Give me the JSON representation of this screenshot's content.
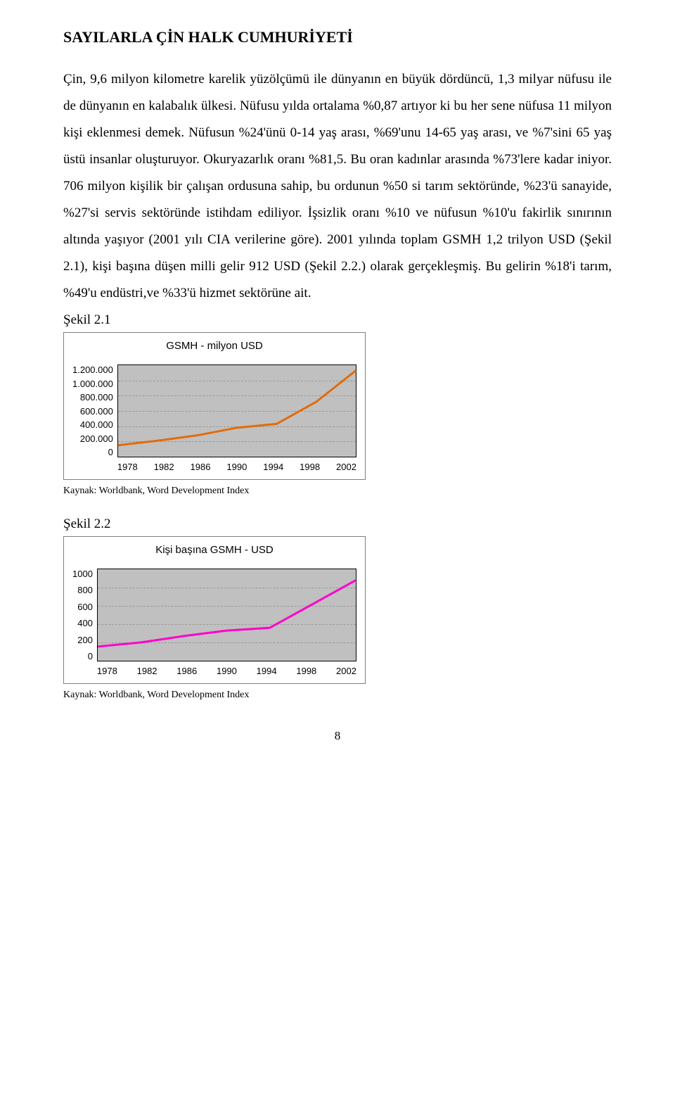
{
  "title": "SAYILARLA ÇİN HALK CUMHURİYETİ",
  "paragraph": "Çin, 9,6 milyon kilometre karelik yüzölçümü ile dünyanın en büyük dördüncü, 1,3 milyar nüfusu ile de dünyanın en kalabalık ülkesi. Nüfusu yılda ortalama %0,87 artıyor ki bu her sene nüfusa 11 milyon kişi eklenmesi demek. Nüfusun %24'ünü 0-14 yaş arası, %69'unu 14-65 yaş arası, ve %7'sini 65 yaş üstü insanlar oluşturuyor. Okuryazarlık oranı %81,5. Bu oran kadınlar arasında %73'lere kadar iniyor. 706 milyon kişilik bir çalışan ordusuna sahip,  bu ordunun %50 si tarım sektöründe, %23'ü sanayide, %27'si servis sektöründe istihdam ediliyor. İşsizlik oranı %10 ve nüfusun %10'u fakirlik sınırının altında yaşıyor (2001 yılı CIA verilerine göre). 2001 yılında toplam GSMH 1,2 trilyon USD (Şekil 2.1), kişi başına düşen milli gelir 912 USD (Şekil 2.2.) olarak gerçekleşmiş. Bu gelirin %18'i tarım, %49'u endüstri,ve %33'ü hizmet sektörüne ait.",
  "sekil21_label": "Şekil 2.1",
  "sekil22_label": "Şekil 2.2",
  "chart1": {
    "type": "line",
    "title": "GSMH - milyon USD",
    "y_ticks": [
      "1.200.000",
      "1.000.000",
      "800.000",
      "600.000",
      "400.000",
      "200.000",
      "0"
    ],
    "x_ticks": [
      "1978",
      "1982",
      "1986",
      "1990",
      "1994",
      "1998",
      "2002"
    ],
    "x_values": [
      1978,
      1982,
      1986,
      1990,
      1994,
      1998,
      2002
    ],
    "y_values": [
      150000,
      210000,
      280000,
      380000,
      430000,
      720000,
      1130000
    ],
    "y_min": 0,
    "y_max": 1200000,
    "line_color": "#e26b0a",
    "line_width": 3,
    "plot_background": "#c0c0c0",
    "grid_color": "#999999",
    "title_fontsize": 15,
    "tick_fontsize": 13
  },
  "chart2": {
    "type": "line",
    "title": "Kişi başına GSMH - USD",
    "y_ticks": [
      "1000",
      "800",
      "600",
      "400",
      "200",
      "0"
    ],
    "x_ticks": [
      "1978",
      "1982",
      "1986",
      "1990",
      "1994",
      "1998",
      "2002"
    ],
    "x_values": [
      1978,
      1982,
      1986,
      1990,
      1994,
      1998,
      2002
    ],
    "y_values": [
      155,
      200,
      270,
      330,
      360,
      620,
      880
    ],
    "y_min": 0,
    "y_max": 1000,
    "line_color": "#ff00cc",
    "line_width": 3,
    "plot_background": "#c0c0c0",
    "grid_color": "#999999",
    "title_fontsize": 15,
    "tick_fontsize": 13
  },
  "kaynak1": "Kaynak: Worldbank, Word Development Index",
  "kaynak2": "Kaynak: Worldbank, Word Development Index",
  "page_number": "8"
}
